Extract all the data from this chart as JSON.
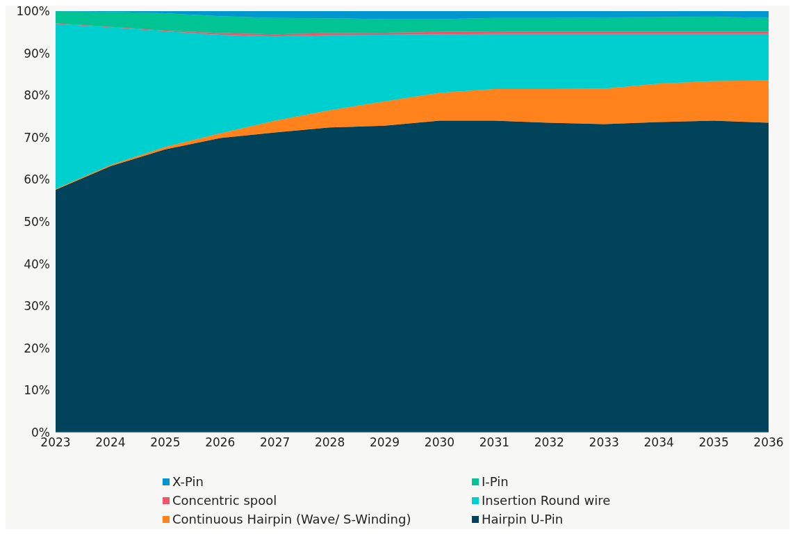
{
  "chart_data": {
    "type": "area",
    "stacked": true,
    "x": [
      2023,
      2024,
      2025,
      2026,
      2027,
      2028,
      2029,
      2030,
      2031,
      2032,
      2033,
      2034,
      2035,
      2036
    ],
    "xlim": [
      2023,
      2036
    ],
    "xticks": [
      2023,
      2024,
      2025,
      2026,
      2027,
      2028,
      2029,
      2030,
      2031,
      2032,
      2033,
      2034,
      2035,
      2036
    ],
    "ylim": [
      0,
      100
    ],
    "yticks": [
      {
        "value": 0,
        "label": "0%"
      },
      {
        "value": 10,
        "label": "10%"
      },
      {
        "value": 20,
        "label": "20%"
      },
      {
        "value": 30,
        "label": "30%"
      },
      {
        "value": 40,
        "label": "40%"
      },
      {
        "value": 50,
        "label": "50%"
      },
      {
        "value": 60,
        "label": "60%"
      },
      {
        "value": 70,
        "label": "70%"
      },
      {
        "value": 80,
        "label": "80%"
      },
      {
        "value": 90,
        "label": "90%"
      },
      {
        "value": 100,
        "label": "100%"
      }
    ],
    "grid": false,
    "legend": "bottom",
    "series": [
      {
        "name": "Hairpin U-Pin",
        "color": "#00435a",
        "values": [
          57.6,
          63.2,
          67.2,
          69.9,
          71.2,
          72.4,
          72.8,
          74.0,
          74.0,
          73.5,
          73.2,
          73.7,
          74.0,
          73.5
        ]
      },
      {
        "name": "Continuous Hairpin (Wave/ S-Winding)",
        "color": "#ff821c",
        "values": [
          0.2,
          0.3,
          0.6,
          1.1,
          2.8,
          4.1,
          5.8,
          6.6,
          7.5,
          8.0,
          8.4,
          9.1,
          9.4,
          10.1
        ]
      },
      {
        "name": "Insertion Round wire",
        "color": "#00cfd0",
        "values": [
          39.2,
          32.7,
          27.4,
          23.4,
          20.0,
          17.8,
          15.8,
          13.9,
          13.1,
          13.1,
          13.0,
          11.8,
          11.2,
          11.0
        ]
      },
      {
        "name": "Concentric spool",
        "color": "#f2546a",
        "values": [
          0.1,
          0.1,
          0.2,
          0.4,
          0.5,
          0.5,
          0.5,
          0.6,
          0.6,
          0.5,
          0.5,
          0.5,
          0.5,
          0.5
        ]
      },
      {
        "name": "I-Pin",
        "color": "#00c494",
        "values": [
          2.9,
          3.5,
          4.1,
          4.0,
          3.9,
          3.5,
          3.2,
          3.0,
          3.2,
          3.3,
          3.4,
          3.5,
          3.6,
          3.3
        ]
      },
      {
        "name": "X-Pin",
        "color": "#0097d0",
        "values": [
          0.0,
          0.2,
          0.5,
          1.2,
          1.6,
          1.7,
          1.9,
          1.9,
          1.6,
          1.6,
          1.5,
          1.4,
          1.3,
          1.6
        ]
      }
    ]
  }
}
